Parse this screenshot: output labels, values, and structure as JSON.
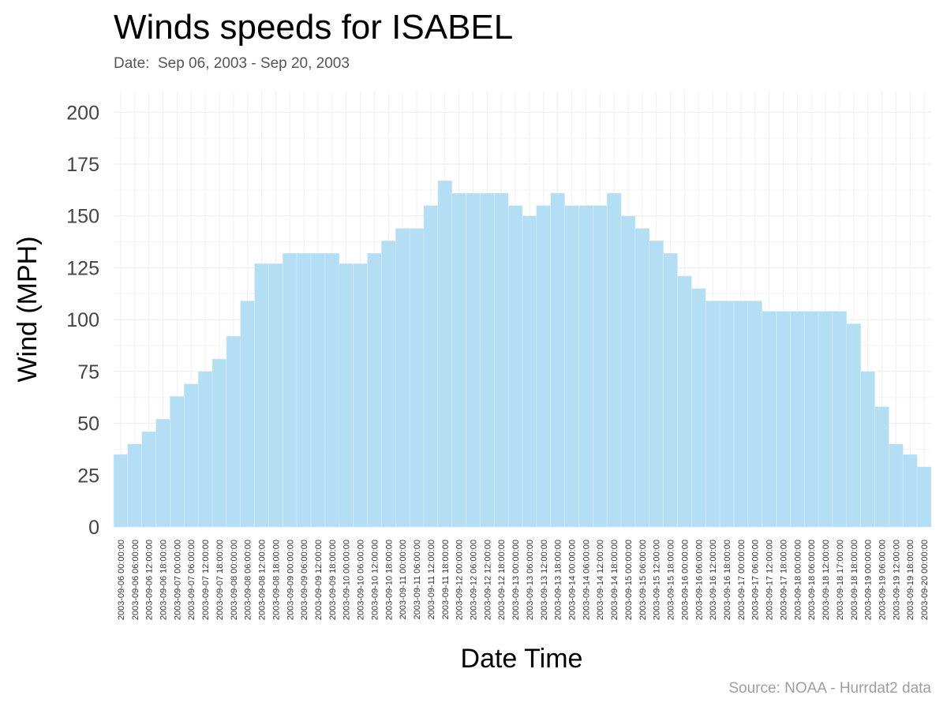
{
  "chart_data": {
    "type": "bar",
    "title": "Winds speeds for ISABEL",
    "subtitle": "Date:  Sep 06, 2003 - Sep 20, 2003",
    "caption": "Source: NOAA - Hurrdat2 data",
    "xlabel": "Date Time",
    "ylabel": "Wind (MPH)",
    "ylim": [
      0,
      210
    ],
    "yticks": [
      0,
      25,
      50,
      75,
      100,
      125,
      150,
      175,
      200
    ],
    "grid": true,
    "bar_color": "#b3def4",
    "categories": [
      "2003-09-06 00:00:00",
      "2003-09-06 06:00:00",
      "2003-09-06 12:00:00",
      "2003-09-06 18:00:00",
      "2003-09-07 00:00:00",
      "2003-09-07 06:00:00",
      "2003-09-07 12:00:00",
      "2003-09-07 18:00:00",
      "2003-09-08 00:00:00",
      "2003-09-08 06:00:00",
      "2003-09-08 12:00:00",
      "2003-09-08 18:00:00",
      "2003-09-09 00:00:00",
      "2003-09-09 06:00:00",
      "2003-09-09 12:00:00",
      "2003-09-09 18:00:00",
      "2003-09-10 00:00:00",
      "2003-09-10 06:00:00",
      "2003-09-10 12:00:00",
      "2003-09-10 18:00:00",
      "2003-09-11 00:00:00",
      "2003-09-11 06:00:00",
      "2003-09-11 12:00:00",
      "2003-09-11 18:00:00",
      "2003-09-12 00:00:00",
      "2003-09-12 06:00:00",
      "2003-09-12 12:00:00",
      "2003-09-12 18:00:00",
      "2003-09-13 00:00:00",
      "2003-09-13 06:00:00",
      "2003-09-13 12:00:00",
      "2003-09-13 18:00:00",
      "2003-09-14 00:00:00",
      "2003-09-14 06:00:00",
      "2003-09-14 12:00:00",
      "2003-09-14 18:00:00",
      "2003-09-15 00:00:00",
      "2003-09-15 06:00:00",
      "2003-09-15 12:00:00",
      "2003-09-15 18:00:00",
      "2003-09-16 00:00:00",
      "2003-09-16 06:00:00",
      "2003-09-16 12:00:00",
      "2003-09-16 18:00:00",
      "2003-09-17 00:00:00",
      "2003-09-17 06:00:00",
      "2003-09-17 12:00:00",
      "2003-09-17 18:00:00",
      "2003-09-18 00:00:00",
      "2003-09-18 06:00:00",
      "2003-09-18 12:00:00",
      "2003-09-18 17:00:00",
      "2003-09-18 18:00:00",
      "2003-09-19 00:00:00",
      "2003-09-19 06:00:00",
      "2003-09-19 12:00:00",
      "2003-09-19 18:00:00",
      "2003-09-20 00:00:00"
    ],
    "values": [
      35,
      40,
      46,
      52,
      63,
      69,
      75,
      81,
      92,
      109,
      127,
      127,
      132,
      132,
      132,
      132,
      127,
      127,
      132,
      138,
      144,
      144,
      155,
      167,
      161,
      161,
      161,
      161,
      155,
      150,
      155,
      161,
      155,
      155,
      155,
      161,
      150,
      144,
      138,
      132,
      121,
      115,
      109,
      109,
      109,
      109,
      104,
      104,
      104,
      104,
      104,
      104,
      98,
      75,
      58,
      40,
      35,
      29
    ]
  }
}
